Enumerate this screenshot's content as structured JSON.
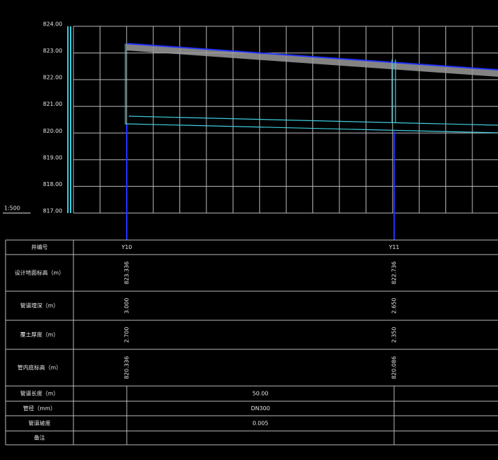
{
  "axis": {
    "labels": [
      "824.00",
      "823.00",
      "822.00",
      "821.00",
      "820.00",
      "819.00",
      "818.00",
      "817.00"
    ],
    "scale": "1:500"
  },
  "table": {
    "rows": [
      [
        "井编号",
        "Y10",
        "Y11"
      ],
      [
        "设计地面标高（m）",
        "823.336",
        "822.736"
      ],
      [
        "管道埋深（m）",
        "3.000",
        "2.650"
      ],
      [
        "覆土厚度（m）",
        "2.700",
        "2.350"
      ],
      [
        "管内底标高（m）",
        "820.336",
        "820.086"
      ],
      [
        "管道长度（m）",
        "50.00"
      ],
      [
        "管径（mm）",
        "DN300"
      ],
      [
        "管道坡度",
        "0.005"
      ],
      [
        "备注"
      ]
    ]
  }
}
